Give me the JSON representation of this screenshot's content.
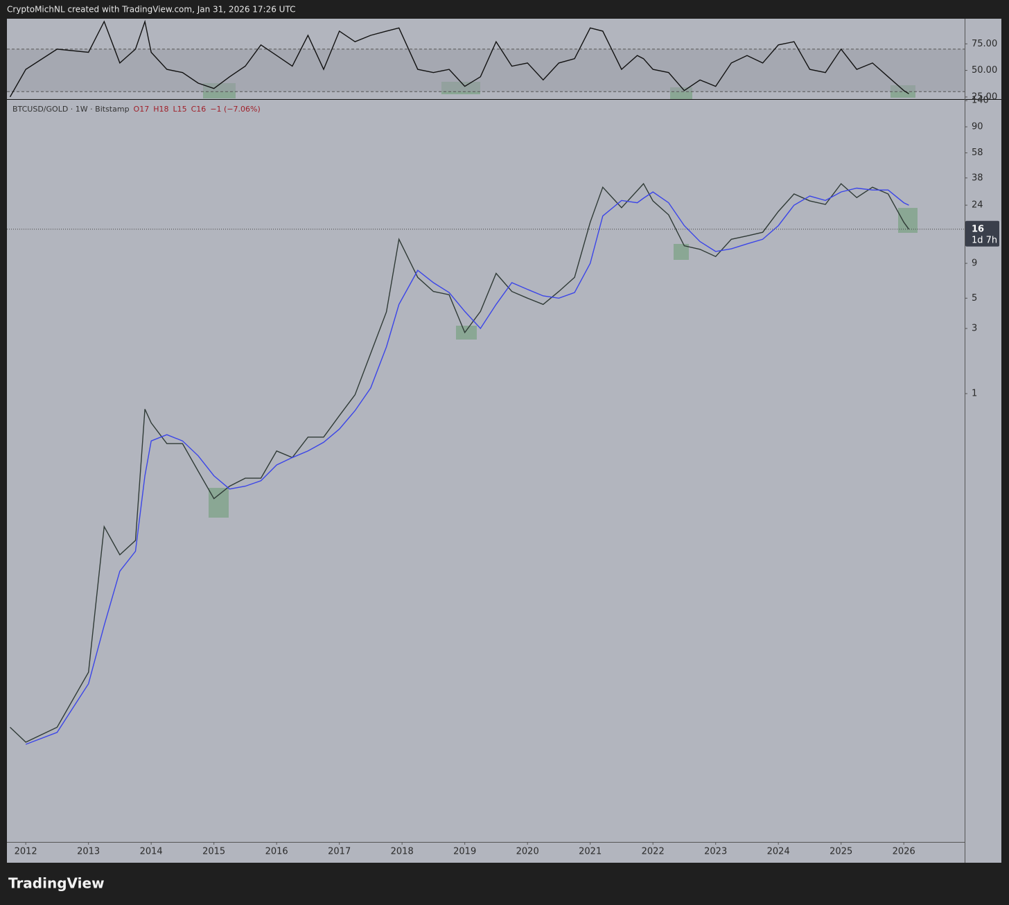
{
  "header": "CryptoMichNL created with TradingView.com, Jan 31, 2026 17:26 UTC",
  "footer": "TradingView",
  "chart_data": [
    {
      "type": "line",
      "symbol": "BTCUSD/GOLD · 1W · Bitstamp",
      "ohlc": [
        "O17",
        "H18",
        "L15",
        "C16"
      ],
      "change": "−1 (−7.06%)",
      "last_price": 16,
      "countdown": "1d 7h",
      "log_scale": true,
      "x": [
        2011.75,
        2012,
        2012.5,
        2013,
        2013.25,
        2013.5,
        2013.75,
        2013.9,
        2014,
        2014.25,
        2014.5,
        2014.75,
        2015,
        2015.25,
        2015.5,
        2015.75,
        2016,
        2016.25,
        2016.5,
        2016.75,
        2017,
        2017.25,
        2017.5,
        2017.75,
        2017.95,
        2018.25,
        2018.5,
        2018.75,
        2019,
        2019.25,
        2019.5,
        2019.75,
        2020,
        2020.25,
        2020.5,
        2020.75,
        2021,
        2021.2,
        2021.5,
        2021.75,
        2021.85,
        2022,
        2022.25,
        2022.5,
        2022.75,
        2023,
        2023.25,
        2023.5,
        2023.75,
        2024,
        2024.25,
        2024.5,
        2024.75,
        2025,
        2025.25,
        2025.5,
        2025.75,
        2026,
        2026.08
      ],
      "series": [
        {
          "color": "#2f3a36",
          "values": [
            0.0036,
            0.0028,
            0.0036,
            0.0091,
            0.106,
            0.066,
            0.084,
            0.77,
            0.61,
            0.43,
            0.43,
            0.27,
            0.17,
            0.21,
            0.24,
            0.24,
            0.38,
            0.34,
            0.48,
            0.48,
            0.69,
            0.98,
            1.97,
            3.97,
            13.5,
            7.1,
            5.6,
            5.3,
            2.8,
            4.0,
            7.6,
            5.6,
            5.0,
            4.5,
            5.6,
            7.1,
            18,
            32.5,
            23,
            30.7,
            34.5,
            25.8,
            20.4,
            12.1,
            11.4,
            10.1,
            13.5,
            14.3,
            15.2,
            21.6,
            29,
            25.8,
            24.3,
            34.5,
            27.3,
            32.5,
            29,
            18,
            16
          ]
        },
        {
          "color": "#3b45e8",
          "values": [
            null,
            0.0027,
            0.0033,
            0.0075,
            0.02,
            0.05,
            0.07,
            0.25,
            0.45,
            0.5,
            0.45,
            0.35,
            0.25,
            0.2,
            0.21,
            0.23,
            0.3,
            0.34,
            0.38,
            0.44,
            0.55,
            0.75,
            1.1,
            2.2,
            4.5,
            8,
            6.5,
            5.5,
            4,
            3,
            4.5,
            6.5,
            5.8,
            5.2,
            5,
            5.5,
            9,
            20,
            26,
            25,
            27,
            30,
            25,
            17,
            13,
            11,
            11.5,
            12.5,
            13.5,
            17,
            24,
            28,
            26,
            30,
            32,
            31,
            31,
            25,
            24
          ]
        }
      ],
      "xlim": [
        2011.7,
        2026.97
      ],
      "xticks": [
        2012,
        2013,
        2014,
        2015,
        2016,
        2017,
        2018,
        2019,
        2020,
        2021,
        2022,
        2023,
        2024,
        2025,
        2026
      ],
      "ylim": [
        0.00052,
        142
      ],
      "yticks": [
        140,
        90,
        58,
        38,
        24,
        9,
        5,
        3,
        1
      ]
    },
    {
      "type": "line",
      "band": [
        30,
        70
      ],
      "x": [
        2011.75,
        2012,
        2012.5,
        2013,
        2013.25,
        2013.5,
        2013.75,
        2013.9,
        2014,
        2014.25,
        2014.5,
        2014.75,
        2015,
        2015.25,
        2015.5,
        2015.75,
        2016,
        2016.25,
        2016.5,
        2016.75,
        2017,
        2017.25,
        2017.5,
        2017.75,
        2017.95,
        2018.25,
        2018.5,
        2018.75,
        2019,
        2019.25,
        2019.5,
        2019.75,
        2020,
        2020.25,
        2020.5,
        2020.75,
        2021,
        2021.2,
        2021.5,
        2021.75,
        2021.85,
        2022,
        2022.25,
        2022.5,
        2022.75,
        2023,
        2023.25,
        2023.5,
        2023.75,
        2024,
        2024.25,
        2024.5,
        2024.75,
        2025,
        2025.25,
        2025.5,
        2025.75,
        2026,
        2026.08
      ],
      "series": [
        {
          "color": "#111111",
          "values": [
            25,
            51,
            70,
            67,
            96,
            57,
            70,
            96,
            67,
            51,
            48,
            38,
            33,
            44,
            54,
            74,
            64,
            54,
            83,
            51,
            87,
            77,
            83,
            87,
            90,
            51,
            48,
            51,
            35,
            44,
            77,
            54,
            57,
            41,
            57,
            61,
            90,
            87,
            51,
            64,
            61,
            51,
            48,
            31,
            41,
            35,
            57,
            64,
            57,
            74,
            77,
            51,
            48,
            70,
            51,
            57,
            44,
            31,
            28
          ]
        }
      ],
      "xlim": [
        2011.7,
        2026.97
      ],
      "ylim": [
        23,
        98
      ],
      "yticks": [
        {
          "value": 75,
          "label": "75.00"
        },
        {
          "value": 50,
          "label": "50.00"
        },
        {
          "value": 25,
          "label": "25.00"
        }
      ]
    }
  ]
}
